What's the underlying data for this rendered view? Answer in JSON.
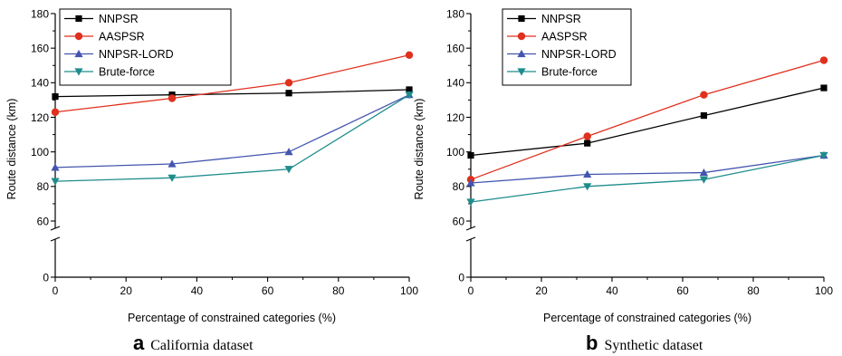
{
  "colors": {
    "NNPSR": "#000000",
    "AASPSR": "#e0301e",
    "NNPSR-LORD": "#4455b0",
    "Brute-force": "#1f8c8c"
  },
  "chart_data": [
    {
      "type": "line",
      "caption_letter": "a",
      "caption_text": "California dataset",
      "xlabel": "Percentage of constrained categories (%)",
      "ylabel": "Route distance (km)",
      "xlim": [
        0,
        100
      ],
      "xticks": [
        "0",
        "20",
        "40",
        "60",
        "80",
        "100"
      ],
      "yticks": [
        "0",
        "60",
        "80",
        "100",
        "120",
        "140",
        "160",
        "180"
      ],
      "y_axis_break": "between 0 and 60",
      "legend_position": "top-left",
      "x": [
        0,
        33,
        66,
        100
      ],
      "series": [
        {
          "name": "NNPSR",
          "marker": "square",
          "values": [
            132,
            133,
            134,
            136
          ]
        },
        {
          "name": "AASPSR",
          "marker": "circle",
          "values": [
            123,
            131,
            140,
            156
          ]
        },
        {
          "name": "NNPSR-LORD",
          "marker": "triangle-up",
          "values": [
            91,
            93,
            100,
            133
          ]
        },
        {
          "name": "Brute-force",
          "marker": "triangle-down",
          "values": [
            83,
            85,
            90,
            133
          ]
        }
      ]
    },
    {
      "type": "line",
      "caption_letter": "b",
      "caption_text": "Synthetic dataset",
      "xlabel": "Percentage of constrained categories (%)",
      "ylabel": "Route distance (km)",
      "xlim": [
        0,
        100
      ],
      "xticks": [
        "0",
        "20",
        "40",
        "60",
        "80",
        "100"
      ],
      "yticks": [
        "0",
        "60",
        "80",
        "100",
        "120",
        "140",
        "160",
        "180"
      ],
      "y_axis_break": "between 0 and 60",
      "legend_position": "top-left",
      "x": [
        0,
        33,
        66,
        100
      ],
      "series": [
        {
          "name": "NNPSR",
          "marker": "square",
          "values": [
            98,
            105,
            121,
            137
          ]
        },
        {
          "name": "AASPSR",
          "marker": "circle",
          "values": [
            84,
            109,
            133,
            153
          ]
        },
        {
          "name": "NNPSR-LORD",
          "marker": "triangle-up",
          "values": [
            82,
            87,
            88,
            98
          ]
        },
        {
          "name": "Brute-force",
          "marker": "triangle-down",
          "values": [
            71,
            80,
            84,
            98
          ]
        }
      ]
    }
  ]
}
